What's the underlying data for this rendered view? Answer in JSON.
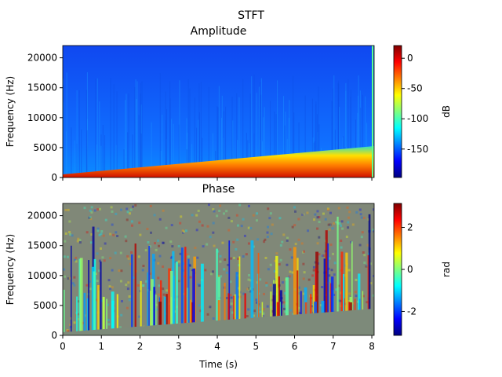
{
  "suptitle": "STFT",
  "chart_data": [
    {
      "type": "spectrogram",
      "title": "Amplitude",
      "ylabel": "Frequency (Hz)",
      "xlim": [
        0,
        8.06
      ],
      "xticks": [
        0,
        1,
        2,
        3,
        4,
        5,
        6,
        7,
        8
      ],
      "xticklabels": false,
      "ylim": [
        0,
        22050
      ],
      "yticks": [
        0,
        5000,
        10000,
        15000,
        20000
      ],
      "colorbar": {
        "label": "dB",
        "colormap": "jet",
        "lim": [
          -197,
          21
        ],
        "ticks": [
          -150,
          -100,
          -50,
          0
        ]
      }
    },
    {
      "type": "spectrogram",
      "title": "Phase",
      "ylabel": "Frequency (Hz)",
      "xlabel": "Time (s)",
      "xlim": [
        0,
        8.06
      ],
      "xticks": [
        0,
        1,
        2,
        3,
        4,
        5,
        6,
        7,
        8
      ],
      "xticklabels": true,
      "ylim": [
        0,
        22050
      ],
      "yticks": [
        0,
        5000,
        10000,
        15000,
        20000
      ],
      "colorbar": {
        "label": "rad",
        "colormap": "jet",
        "lim": [
          -3.14159,
          3.14159
        ],
        "ticks": [
          -2,
          0,
          2
        ]
      }
    }
  ]
}
